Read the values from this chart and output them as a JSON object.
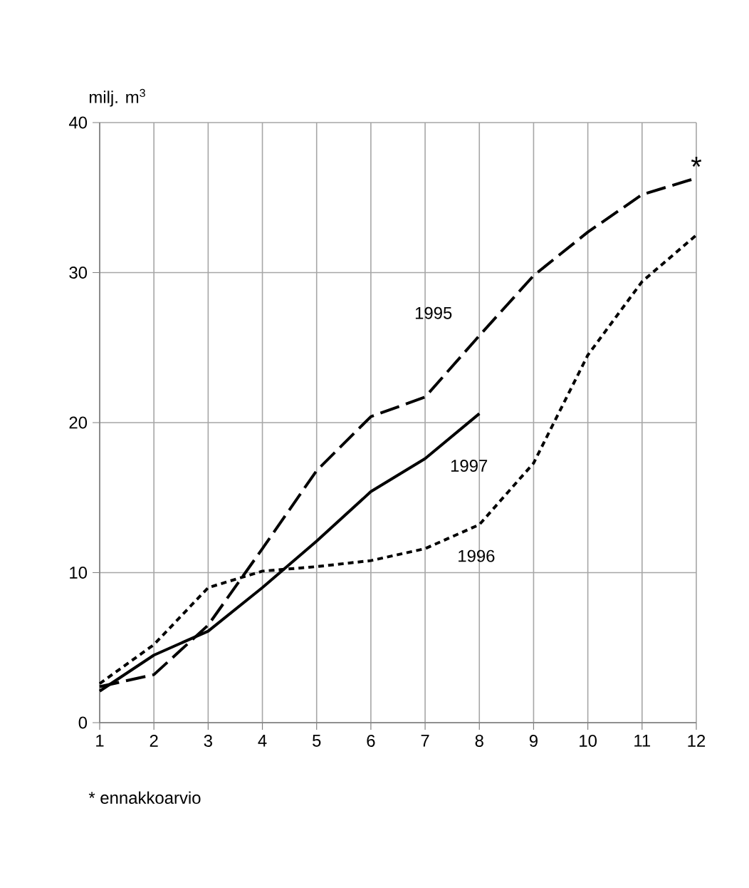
{
  "chart_data": {
    "type": "line",
    "ylabel": "milj. m$^{3}$",
    "x": [
      1,
      2,
      3,
      4,
      5,
      6,
      7,
      8,
      9,
      10,
      11,
      12
    ],
    "series": [
      {
        "name": "1995",
        "color": "#000000",
        "line_style": "dashed",
        "values": [
          2.4,
          3.2,
          6.5,
          11.6,
          16.8,
          20.4,
          21.7,
          25.8,
          29.8,
          32.7,
          35.2,
          36.3
        ]
      },
      {
        "name": "1996",
        "color": "#000000",
        "line_style": "dotted",
        "values": [
          2.6,
          5.2,
          9.0,
          10.1,
          10.4,
          10.8,
          11.6,
          13.2,
          17.3,
          24.5,
          29.4,
          32.5
        ]
      },
      {
        "name": "1997",
        "color": "#000000",
        "line_style": "solid",
        "values": [
          2.1,
          4.5,
          6.1,
          9.0,
          12.1,
          15.4,
          17.6,
          20.6,
          null,
          null,
          null,
          null
        ]
      }
    ],
    "xlim": [
      1,
      12
    ],
    "xticks": [
      1,
      2,
      3,
      4,
      5,
      6,
      7,
      8,
      9,
      10,
      11,
      12
    ],
    "ylim": [
      0,
      40
    ],
    "yticks": [
      0,
      10,
      20,
      30,
      40
    ],
    "grid": true,
    "marker": "none",
    "annotations": [
      {
        "text": "*",
        "x": 12,
        "y": 36.3
      },
      "* ennakkoarvio"
    ]
  }
}
